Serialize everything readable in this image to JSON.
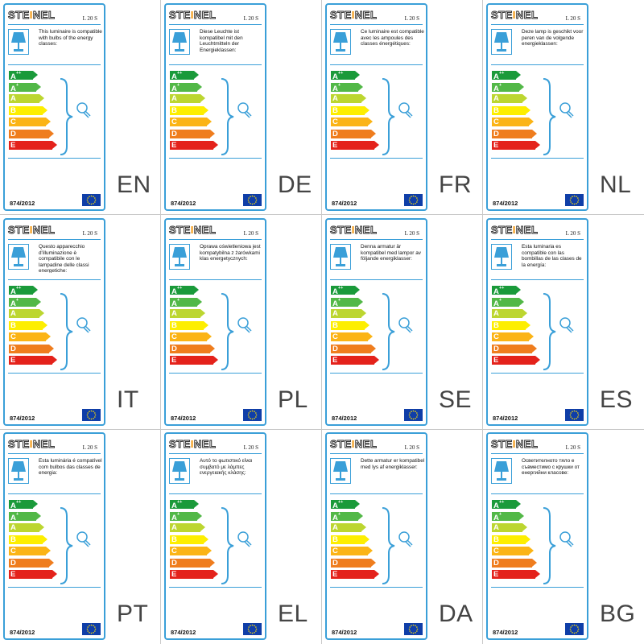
{
  "brand": "STEINEL",
  "model": "L 20 S",
  "regulation": "874/2012",
  "classes": [
    "A++",
    "A+",
    "A",
    "B",
    "C",
    "D",
    "E"
  ],
  "class_colors": [
    "#1a9a3a",
    "#52b847",
    "#bcd630",
    "#fdee00",
    "#fbb416",
    "#ef7d1e",
    "#e4221b"
  ],
  "accent": "#3a9fd8",
  "labels": [
    {
      "lang": "EN",
      "text": "This luminaire is compatible with bulbs of the energy classes:"
    },
    {
      "lang": "DE",
      "text": "Diese Leuchte ist kompatibel mit den Leuchtmitteln der Energieklassen:"
    },
    {
      "lang": "FR",
      "text": "Ce luminaire est compatible avec les ampoules des classes énergétiques:"
    },
    {
      "lang": "NL",
      "text": "Deze lamp is geschikt voor peren van de volgende energieklassen:"
    },
    {
      "lang": "IT",
      "text": "Questo apparecchio d'illuminazione è compatibile con le lampadine delle classi energetiche:"
    },
    {
      "lang": "PL",
      "text": "Oprawa oświetleniowa jest kompatybilna z żarówkami klas energetycznych:"
    },
    {
      "lang": "SE",
      "text": "Denna armatur är kompatibel med lampor av följande energiklasser:"
    },
    {
      "lang": "ES",
      "text": "Esta luminaria es compatible con las bombillas de las clases de la energía:"
    },
    {
      "lang": "PT",
      "text": "Esta luminária é compatível com bulbos das classes de energia:"
    },
    {
      "lang": "EL",
      "text": "Αυτό το φωτιστικό είναι συμβατό με λάμπες ενεργειακής κλάσης:"
    },
    {
      "lang": "DA",
      "text": "Dette armatur er kompatibel med lys af energiklasser:"
    },
    {
      "lang": "BG",
      "text": "Осветителното тяло е съвместимо с крушки от енергийни класове:"
    }
  ]
}
